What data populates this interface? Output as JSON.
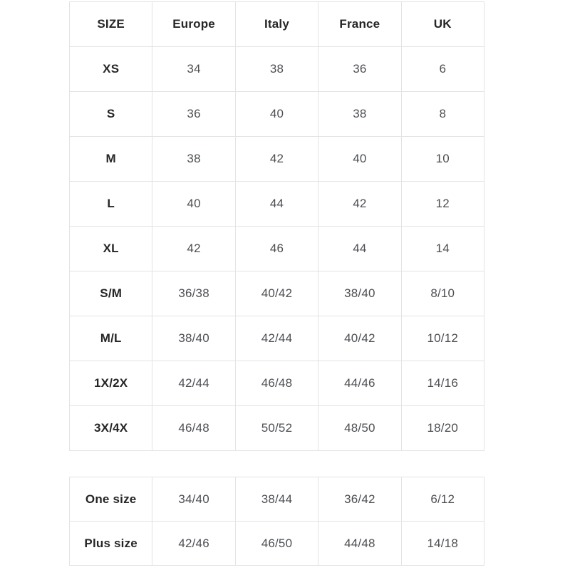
{
  "colors": {
    "background": "#ffffff",
    "border": "#e3e3e3",
    "header_text": "#262626",
    "value_text": "#4d4f53"
  },
  "size_table": {
    "columns": [
      "SIZE",
      "Europe",
      "Italy",
      "France",
      "UK"
    ],
    "rows": [
      {
        "label": "XS",
        "values": [
          "34",
          "38",
          "36",
          "6"
        ]
      },
      {
        "label": "S",
        "values": [
          "36",
          "40",
          "38",
          "8"
        ]
      },
      {
        "label": "M",
        "values": [
          "38",
          "42",
          "40",
          "10"
        ]
      },
      {
        "label": "L",
        "values": [
          "40",
          "44",
          "42",
          "12"
        ]
      },
      {
        "label": "XL",
        "values": [
          "42",
          "46",
          "44",
          "14"
        ]
      },
      {
        "label": "S/M",
        "values": [
          "36/38",
          "40/42",
          "38/40",
          "8/10"
        ]
      },
      {
        "label": "M/L",
        "values": [
          "38/40",
          "42/44",
          "40/42",
          "10/12"
        ]
      },
      {
        "label": "1X/2X",
        "values": [
          "42/44",
          "46/48",
          "44/46",
          "14/16"
        ]
      },
      {
        "label": "3X/4X",
        "values": [
          "46/48",
          "50/52",
          "48/50",
          "18/20"
        ]
      }
    ]
  },
  "special_table": {
    "rows": [
      {
        "label": "One size",
        "values": [
          "34/40",
          "38/44",
          "36/42",
          "6/12"
        ]
      },
      {
        "label": "Plus size",
        "values": [
          "42/46",
          "46/50",
          "44/48",
          "14/18"
        ]
      }
    ]
  },
  "chart_data": [
    {
      "type": "table",
      "columns": [
        "SIZE",
        "Europe",
        "Italy",
        "France",
        "UK"
      ],
      "rows": [
        [
          "XS",
          "34",
          "38",
          "36",
          "6"
        ],
        [
          "S",
          "36",
          "40",
          "38",
          "8"
        ],
        [
          "M",
          "38",
          "42",
          "40",
          "10"
        ],
        [
          "L",
          "40",
          "44",
          "42",
          "12"
        ],
        [
          "XL",
          "42",
          "46",
          "44",
          "14"
        ],
        [
          "S/M",
          "36/38",
          "40/42",
          "38/40",
          "8/10"
        ],
        [
          "M/L",
          "38/40",
          "42/44",
          "40/42",
          "10/12"
        ],
        [
          "1X/2X",
          "42/44",
          "46/48",
          "44/46",
          "14/16"
        ],
        [
          "3X/4X",
          "46/48",
          "50/52",
          "48/50",
          "18/20"
        ]
      ]
    },
    {
      "type": "table",
      "columns": [
        "SIZE",
        "Europe",
        "Italy",
        "France",
        "UK"
      ],
      "rows": [
        [
          "One size",
          "34/40",
          "38/44",
          "36/42",
          "6/12"
        ],
        [
          "Plus size",
          "42/46",
          "46/50",
          "44/48",
          "14/18"
        ]
      ]
    }
  ]
}
